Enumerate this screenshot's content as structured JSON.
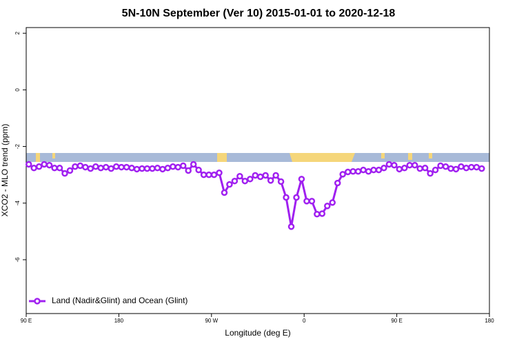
{
  "chart_data": {
    "type": "line",
    "title": "5N-10N September (Ver 10)   2015-01-01 to 2020-12-18",
    "x_label": "Longitude (deg E)",
    "y_label": "XCO2 - MLO trend (ppm)",
    "xlim": [
      90,
      540
    ],
    "xticks": [
      {
        "value": 90,
        "label": "90 E"
      },
      {
        "value": 180,
        "label": "180"
      },
      {
        "value": 270,
        "label": "90 W"
      },
      {
        "value": 360,
        "label": "0"
      },
      {
        "value": 450,
        "label": "90 E"
      },
      {
        "value": 540,
        "label": "180"
      }
    ],
    "ylim": [
      -7.9,
      2.2
    ],
    "yticks": [
      2,
      0,
      -2,
      -4,
      -6
    ],
    "legend": "bottomleft",
    "x": [
      92.5,
      97.5,
      102.5,
      107.5,
      112.5,
      117.5,
      122.5,
      127.5,
      132.5,
      137.5,
      142.5,
      147.5,
      152.5,
      157.5,
      162.5,
      167.5,
      172.5,
      177.5,
      182.5,
      187.5,
      192.5,
      197.5,
      202.5,
      207.5,
      212.5,
      217.5,
      222.5,
      227.5,
      232.5,
      237.5,
      242.5,
      247.5,
      252.5,
      257.5,
      262.5,
      267.5,
      272.5,
      277.5,
      282.5,
      287.5,
      292.5,
      297.5,
      302.5,
      307.5,
      312.5,
      317.5,
      322.5,
      327.5,
      332.5,
      337.5,
      342.5,
      347.5,
      352.5,
      357.5,
      362.5,
      367.5,
      372.5,
      377.5,
      382.5,
      387.5,
      392.5,
      397.5,
      402.5,
      407.5,
      412.5,
      417.5,
      422.5,
      427.5,
      432.5,
      437.5,
      442.5,
      447.5,
      452.5,
      457.5,
      462.5,
      467.5,
      472.5,
      477.5,
      482.5,
      487.5,
      492.5,
      497.5,
      502.5,
      507.5,
      512.5,
      517.5,
      522.5,
      527.5,
      532.5
    ],
    "series": [
      {
        "name": "Land (Nadir&Glint) and Ocean (Glint)",
        "color": "#a020f0",
        "values": [
          -2.63,
          -2.76,
          -2.71,
          -2.63,
          -2.66,
          -2.76,
          -2.76,
          -2.95,
          -2.85,
          -2.71,
          -2.68,
          -2.73,
          -2.78,
          -2.71,
          -2.76,
          -2.73,
          -2.78,
          -2.71,
          -2.73,
          -2.73,
          -2.76,
          -2.8,
          -2.78,
          -2.78,
          -2.78,
          -2.76,
          -2.8,
          -2.76,
          -2.71,
          -2.73,
          -2.68,
          -2.85,
          -2.63,
          -2.83,
          -3.0,
          -3.0,
          -3.0,
          -2.93,
          -3.63,
          -3.34,
          -3.22,
          -3.05,
          -3.22,
          -3.15,
          -3.02,
          -3.07,
          -3.02,
          -3.2,
          -3.02,
          -3.24,
          -3.8,
          -4.83,
          -3.8,
          -3.15,
          -3.93,
          -3.93,
          -4.39,
          -4.37,
          -4.1,
          -3.98,
          -3.29,
          -2.98,
          -2.9,
          -2.88,
          -2.88,
          -2.83,
          -2.88,
          -2.83,
          -2.83,
          -2.76,
          -2.63,
          -2.66,
          -2.8,
          -2.76,
          -2.66,
          -2.66,
          -2.78,
          -2.76,
          -2.95,
          -2.83,
          -2.68,
          -2.71,
          -2.78,
          -2.8,
          -2.71,
          -2.76,
          -2.73,
          -2.73,
          -2.78
        ]
      }
    ]
  }
}
